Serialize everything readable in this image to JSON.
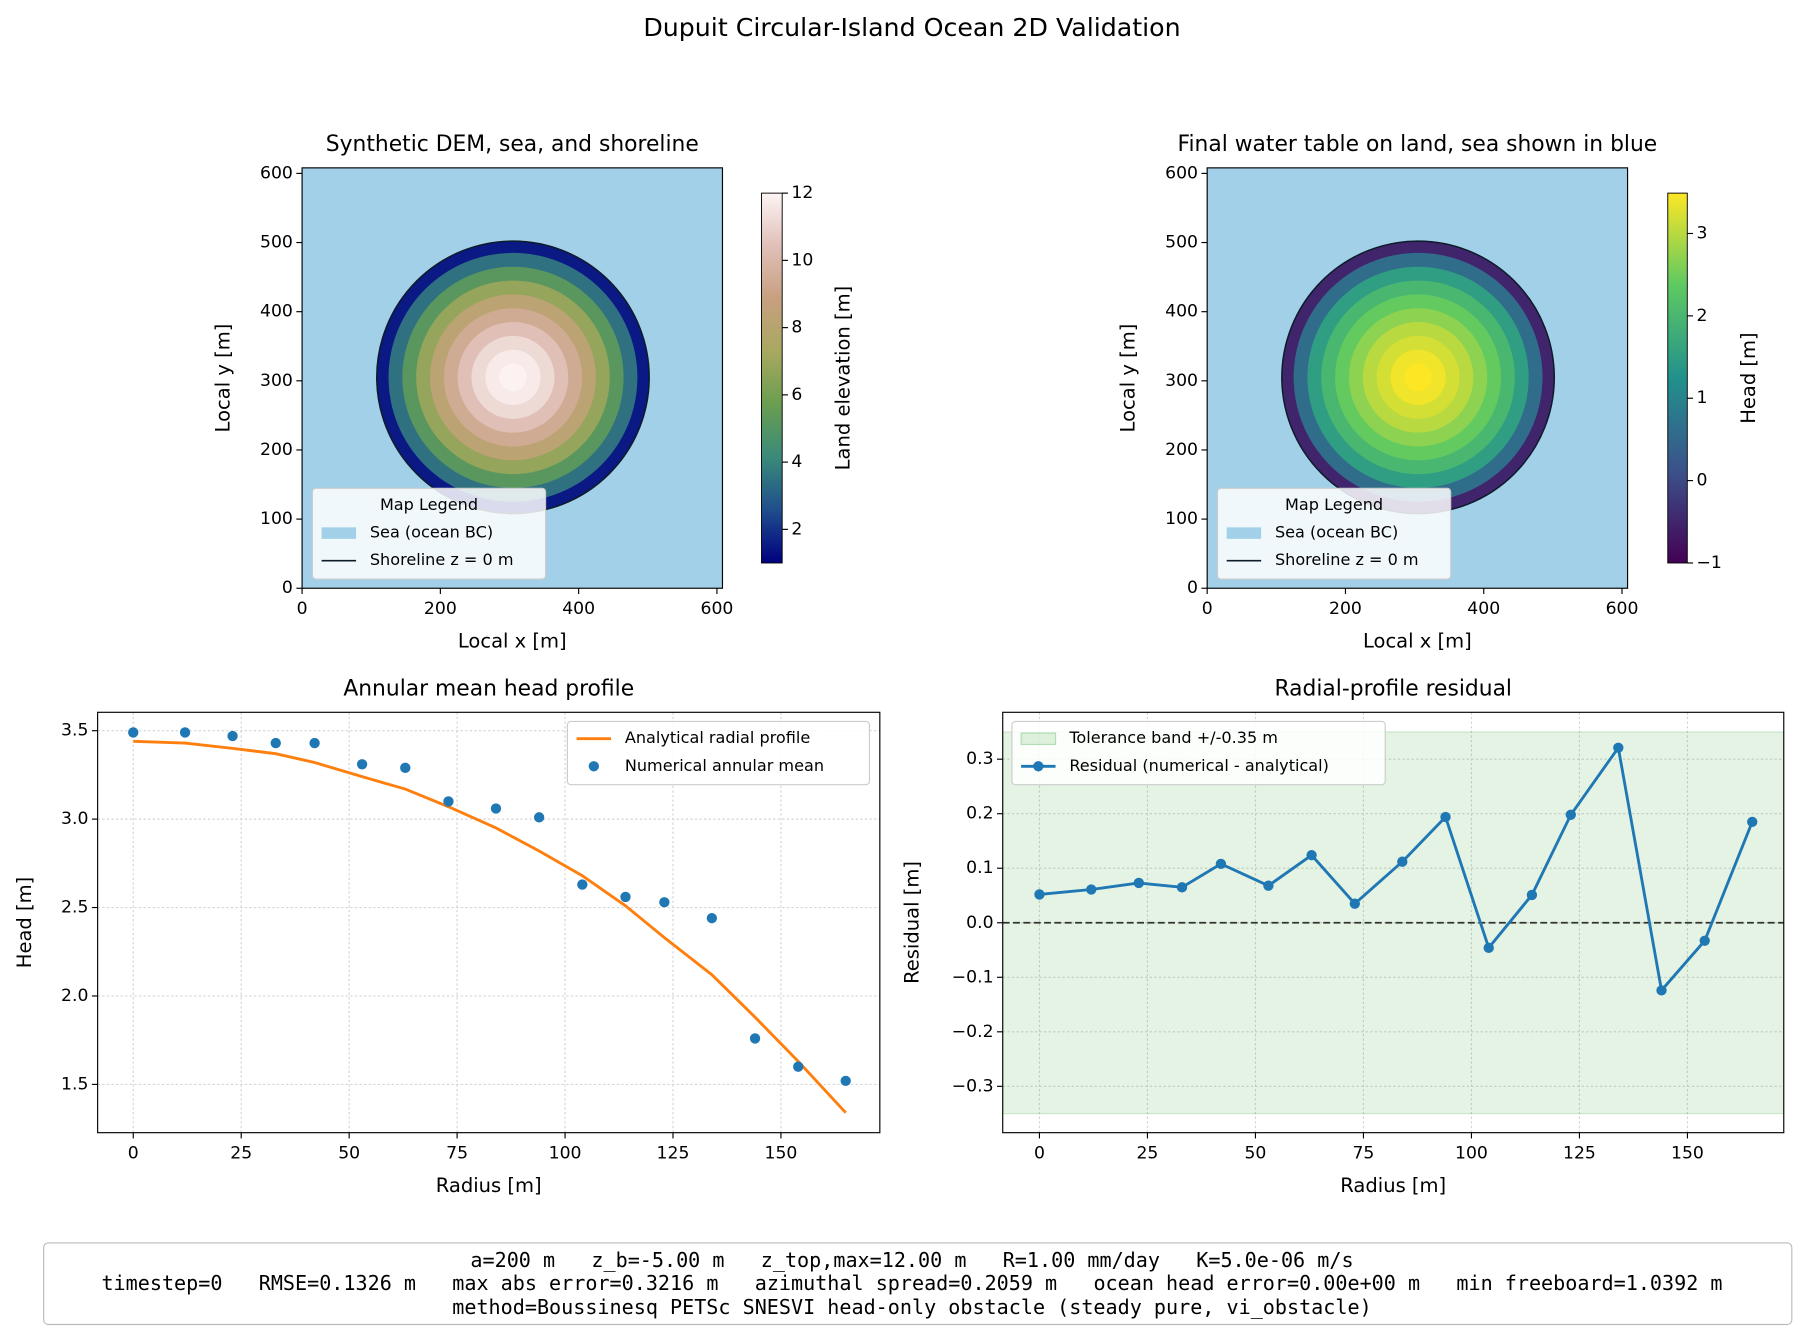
{
  "title": "Dupuit Circular-Island Ocean 2D Validation",
  "chart_data": [
    {
      "type": "map",
      "title": "Synthetic DEM, sea, and shoreline",
      "xlabel": "Local x [m]",
      "ylabel": "Local y [m]",
      "xlim": [
        0,
        608
      ],
      "ylim": [
        0,
        608
      ],
      "xticks": [
        0,
        200,
        400,
        600
      ],
      "yticks": [
        0,
        100,
        200,
        300,
        400,
        500,
        600
      ],
      "sea_color": "#a1d0e8",
      "center": [
        305,
        305
      ],
      "rings": {
        "radii": [
          197,
          180,
          160,
          140,
          120,
          100,
          80,
          60,
          40,
          20
        ],
        "values": [
          1.5,
          3.5,
          5.2,
          6.8,
          8.2,
          9.4,
          10.4,
          11.2,
          11.7,
          11.95
        ]
      },
      "shoreline": {
        "radius": 197,
        "color": "#0d1b2a"
      },
      "colorbar": {
        "label": "Land elevation [m]",
        "clim": [
          1,
          12
        ],
        "ticks": [
          2,
          4,
          6,
          8,
          10,
          12
        ],
        "colormap": [
          "#000080",
          "#1f4e8c",
          "#3a8a7a",
          "#6a9e50",
          "#a8a860",
          "#c8a080",
          "#e0c0b8",
          "#fdf4f4"
        ]
      },
      "legend": {
        "title": "Map Legend",
        "entries": [
          {
            "name": "Sea (ocean BC)",
            "color": "#a1d0e8",
            "marker": "patch"
          },
          {
            "name": "Shoreline z = 0 m",
            "color": "#0d1b2a",
            "marker": "line"
          }
        ]
      }
    },
    {
      "type": "map",
      "title": "Final water table on land, sea shown in blue",
      "xlabel": "Local x [m]",
      "ylabel": "Local y [m]",
      "xlim": [
        0,
        608
      ],
      "ylim": [
        0,
        608
      ],
      "xticks": [
        0,
        200,
        400,
        600
      ],
      "yticks": [
        0,
        100,
        200,
        300,
        400,
        500,
        600
      ],
      "sea_color": "#a1d0e8",
      "center": [
        305,
        305
      ],
      "rings": {
        "radii": [
          197,
          180,
          160,
          140,
          120,
          100,
          80,
          60,
          40,
          20
        ],
        "values": [
          -0.5,
          0.6,
          1.5,
          2.0,
          2.4,
          2.7,
          3.0,
          3.2,
          3.4,
          3.5
        ]
      },
      "shoreline": {
        "radius": 197,
        "color": "#0d1b2a"
      },
      "colorbar": {
        "label": "Head [m]",
        "clim": [
          -1,
          3.49
        ],
        "ticks": [
          {
            "value": -1,
            "label": "−1"
          },
          0,
          1,
          2,
          3
        ],
        "colormap": [
          "#440154",
          "#3b528b",
          "#21918c",
          "#5ec962",
          "#fde725"
        ]
      },
      "legend": {
        "title": "Map Legend",
        "entries": [
          {
            "name": "Sea (ocean BC)",
            "color": "#a1d0e8",
            "marker": "patch"
          },
          {
            "name": "Shoreline z = 0 m",
            "color": "#0d1b2a",
            "marker": "line"
          }
        ]
      }
    },
    {
      "type": "line",
      "title": "Annular mean head profile",
      "xlabel": "Radius [m]",
      "ylabel": "Head [m]",
      "x": [
        0,
        12,
        23,
        33,
        42,
        53,
        63,
        73,
        84,
        94,
        104,
        114,
        123,
        134,
        144,
        154,
        165
      ],
      "series": [
        {
          "name": "Analytical radial profile",
          "color": "#ff7f0e",
          "style": "line",
          "values": [
            3.44,
            3.43,
            3.4,
            3.37,
            3.32,
            3.24,
            3.17,
            3.07,
            2.95,
            2.82,
            2.68,
            2.51,
            2.33,
            2.12,
            1.88,
            1.63,
            1.34
          ]
        },
        {
          "name": "Numerical annular mean",
          "color": "#1f77b4",
          "style": "scatter",
          "values": [
            3.49,
            3.49,
            3.47,
            3.43,
            3.43,
            3.31,
            3.29,
            3.1,
            3.06,
            3.01,
            2.63,
            2.56,
            2.53,
            2.44,
            1.76,
            1.6,
            1.52
          ]
        }
      ],
      "xlim": [
        -8.25,
        172.9
      ],
      "ylim": [
        1.227,
        3.604
      ],
      "xticks": [
        0,
        25,
        50,
        75,
        100,
        125,
        150
      ],
      "yticks": [
        1.5,
        {
          "value": 2,
          "label": "2.0"
        },
        2.5,
        {
          "value": 3,
          "label": "3.0"
        },
        3.5
      ],
      "grid": true,
      "legend": "upper right"
    },
    {
      "type": "line",
      "title": "Radial-profile residual",
      "xlabel": "Radius [m]",
      "ylabel": "Residual [m]",
      "x": [
        0,
        12,
        23,
        33,
        42,
        53,
        63,
        73,
        84,
        94,
        104,
        114,
        123,
        134,
        144,
        154,
        165
      ],
      "band": {
        "name": "Tolerance band +/-0.35 m",
        "low": -0.35,
        "high": 0.35,
        "color": "#2ca02c"
      },
      "series": [
        {
          "name": "Residual (numerical - analytical)",
          "color": "#1f77b4",
          "style": "line-marker",
          "values": [
            0.052,
            0.061,
            0.073,
            0.065,
            0.108,
            0.068,
            0.124,
            0.035,
            0.112,
            0.194,
            -0.046,
            0.051,
            0.198,
            0.321,
            -0.124,
            -0.033,
            0.185
          ]
        }
      ],
      "hline": 0,
      "xlim": [
        -8.5,
        172.3
      ],
      "ylim": [
        -0.385,
        0.386
      ],
      "xticks": [
        0,
        25,
        50,
        75,
        100,
        125,
        150
      ],
      "yticks": [
        {
          "value": -0.3,
          "label": "−0.3"
        },
        {
          "value": -0.2,
          "label": "−0.2"
        },
        {
          "value": -0.1,
          "label": "−0.1"
        },
        {
          "value": 0,
          "label": "0.0"
        },
        0.1,
        0.2,
        0.3
      ],
      "grid": true,
      "legend": "upper left"
    }
  ],
  "footer": [
    "a=200 m   z_b=-5.00 m   z_top,max=12.00 m   R=1.00 mm/day   K=5.0e-06 m/s",
    "timestep=0   RMSE=0.1326 m   max abs error=0.3216 m   azimuthal spread=0.2059 m   ocean head error=0.00e+00 m   min freeboard=1.0392 m",
    "method=Boussinesq PETSc SNESVI head-only obstacle (steady pure, vi_obstacle)"
  ]
}
